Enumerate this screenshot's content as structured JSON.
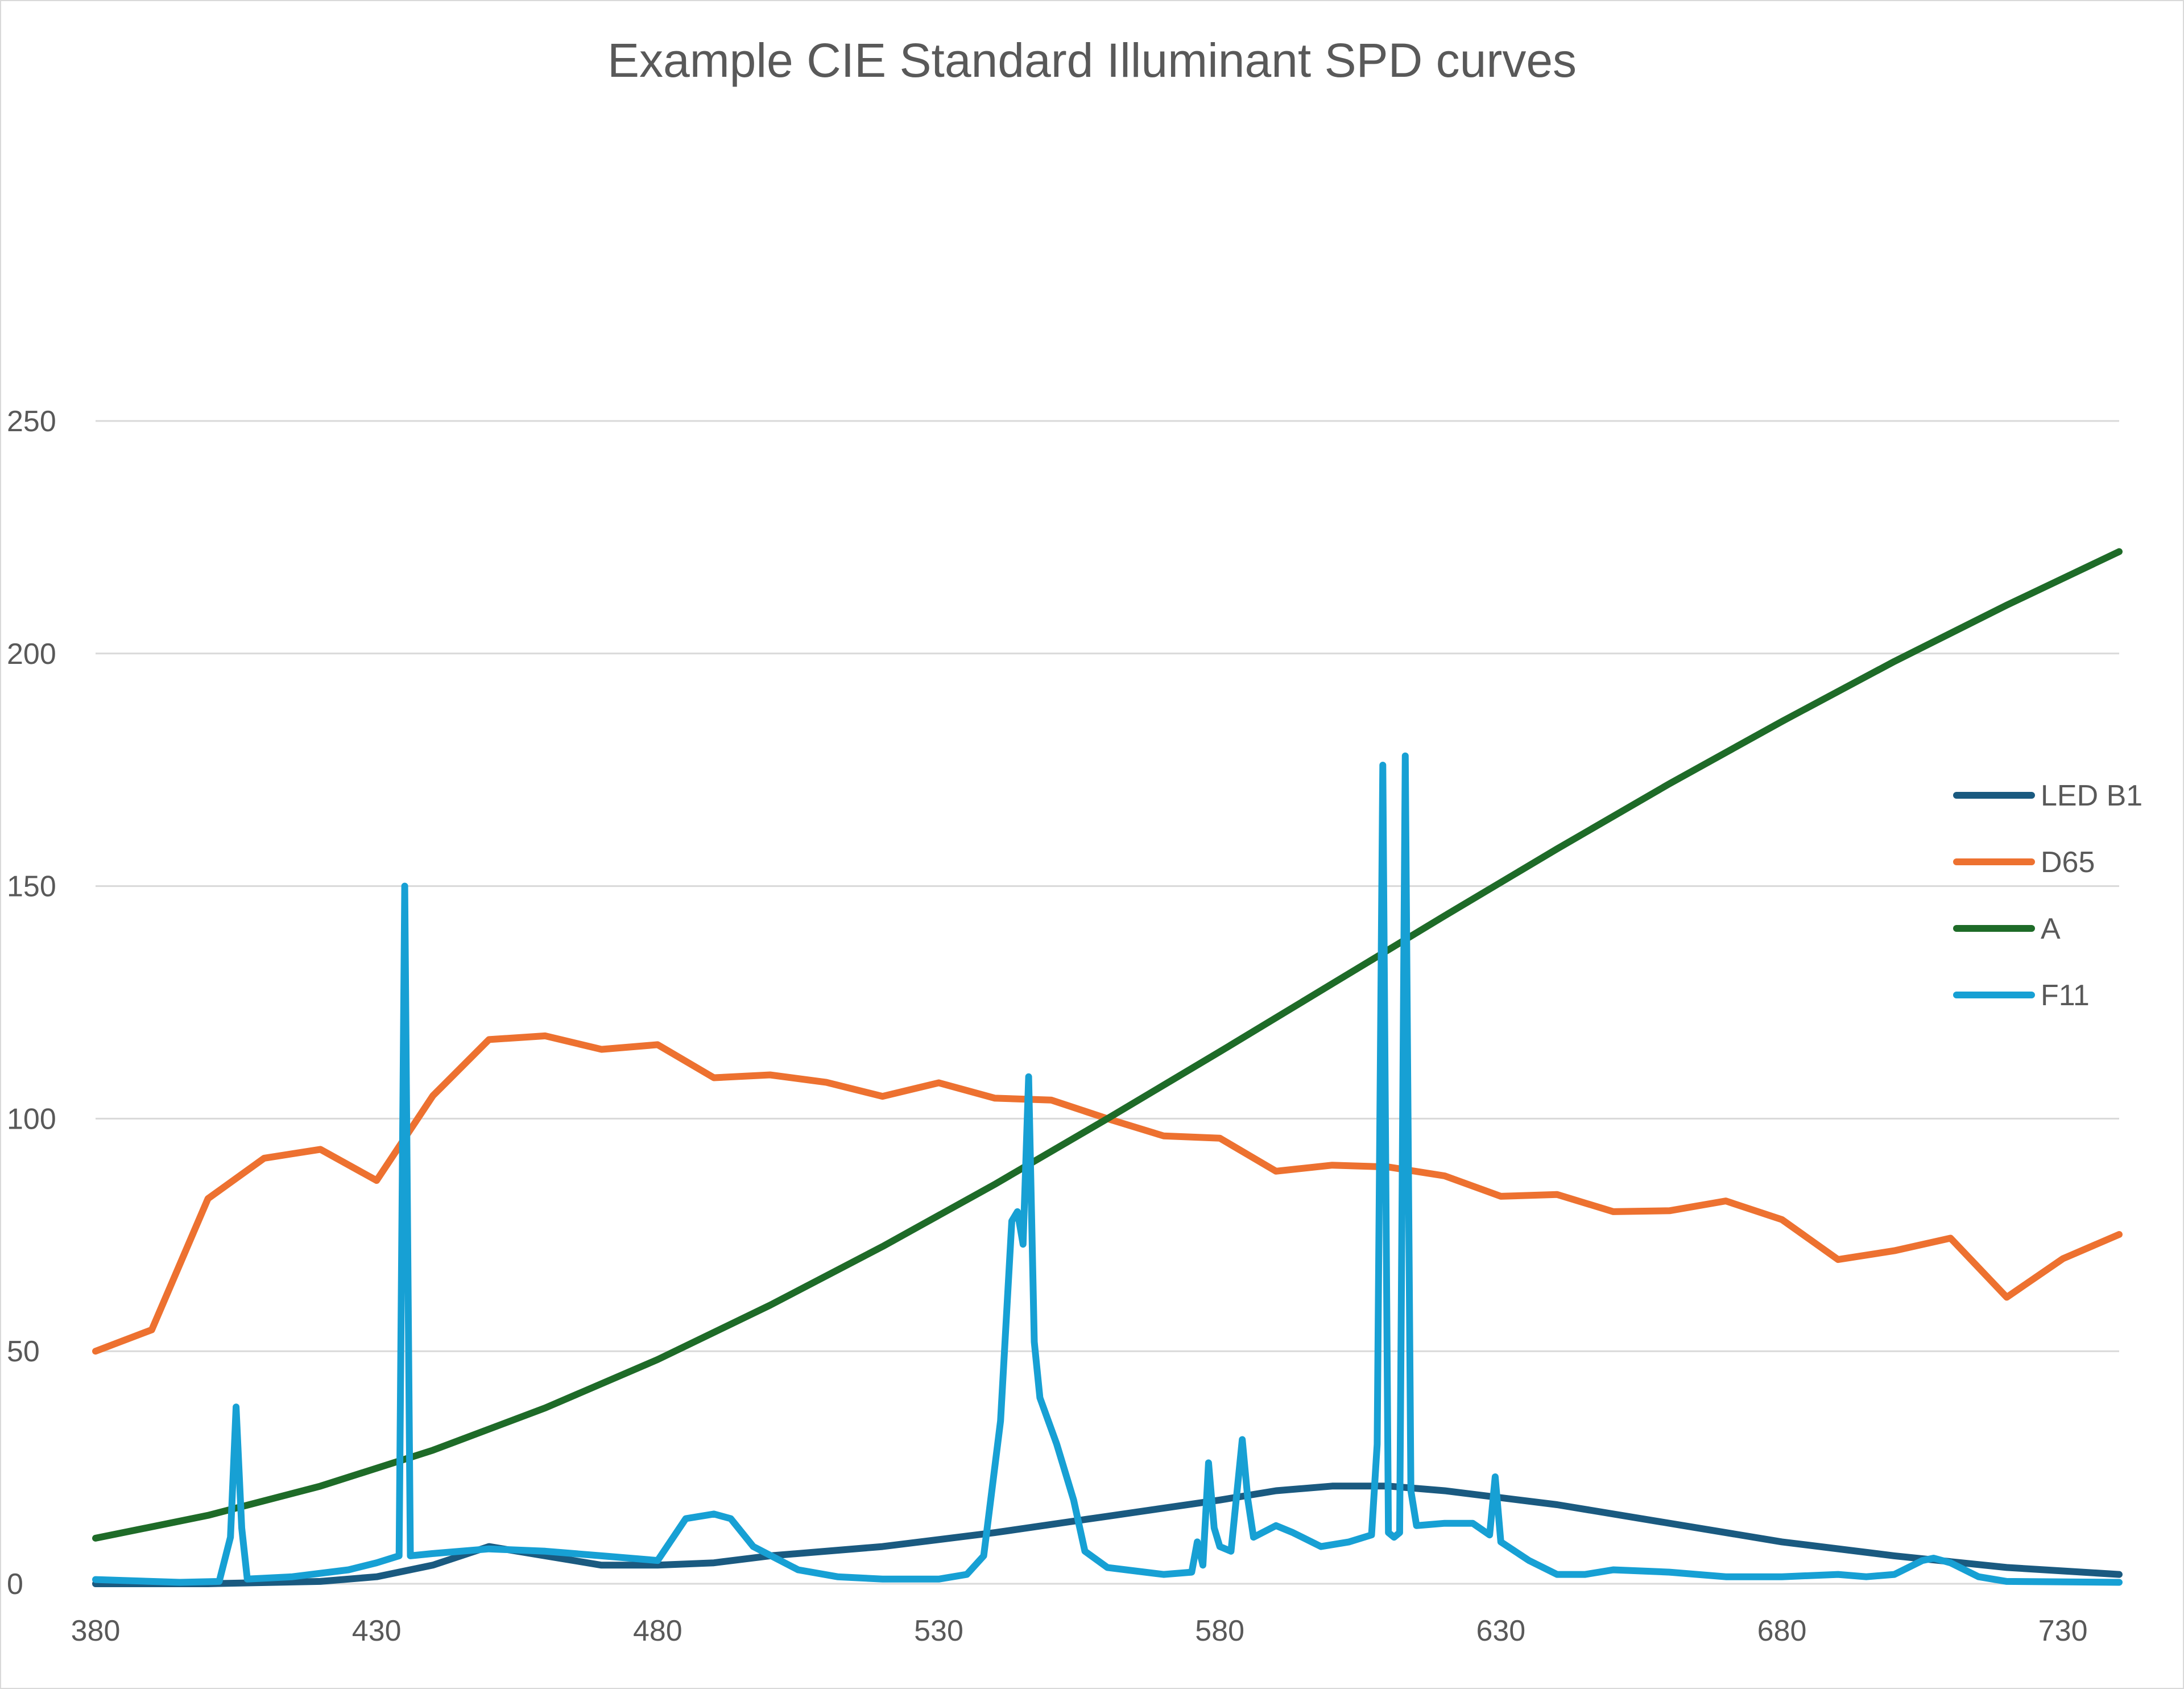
{
  "chart_data": {
    "type": "line",
    "title": "Example CIE Standard Illuminant SPD curves",
    "xlabel": "",
    "ylabel": "",
    "xlim": [
      380,
      740
    ],
    "ylim": [
      0,
      250
    ],
    "x_ticks": [
      "380",
      "430",
      "480",
      "530",
      "580",
      "630",
      "680",
      "730"
    ],
    "y_ticks": [
      "0",
      "50",
      "100",
      "150",
      "200",
      "250"
    ],
    "grid": "horizontal",
    "legend_position": "right",
    "series": [
      {
        "name": "LED B1",
        "color": "#1a5a80",
        "points": [
          [
            380,
            0
          ],
          [
            400,
            0
          ],
          [
            420,
            0.5
          ],
          [
            430,
            1.5
          ],
          [
            440,
            4
          ],
          [
            450,
            8
          ],
          [
            460,
            6
          ],
          [
            470,
            4
          ],
          [
            480,
            4
          ],
          [
            490,
            4.5
          ],
          [
            500,
            6
          ],
          [
            520,
            8
          ],
          [
            540,
            11
          ],
          [
            560,
            14.5
          ],
          [
            580,
            18
          ],
          [
            590,
            20
          ],
          [
            600,
            21
          ],
          [
            610,
            21
          ],
          [
            620,
            20
          ],
          [
            640,
            17
          ],
          [
            660,
            13
          ],
          [
            680,
            9
          ],
          [
            700,
            6
          ],
          [
            720,
            3.5
          ],
          [
            740,
            2
          ]
        ]
      },
      {
        "name": "D65",
        "color": "#ed7130",
        "points": [
          [
            380,
            50
          ],
          [
            390,
            54.6
          ],
          [
            400,
            82.8
          ],
          [
            410,
            91.5
          ],
          [
            420,
            93.4
          ],
          [
            430,
            86.7
          ],
          [
            440,
            104.9
          ],
          [
            450,
            117
          ],
          [
            460,
            117.8
          ],
          [
            470,
            114.9
          ],
          [
            480,
            115.9
          ],
          [
            490,
            108.8
          ],
          [
            500,
            109.4
          ],
          [
            510,
            107.8
          ],
          [
            520,
            104.8
          ],
          [
            530,
            107.7
          ],
          [
            540,
            104.4
          ],
          [
            550,
            104
          ],
          [
            560,
            100
          ],
          [
            570,
            96.3
          ],
          [
            580,
            95.8
          ],
          [
            590,
            88.7
          ],
          [
            600,
            90
          ],
          [
            610,
            89.6
          ],
          [
            620,
            87.7
          ],
          [
            630,
            83.3
          ],
          [
            640,
            83.7
          ],
          [
            650,
            80
          ],
          [
            660,
            80.2
          ],
          [
            670,
            82.3
          ],
          [
            680,
            78.3
          ],
          [
            690,
            69.7
          ],
          [
            700,
            71.6
          ],
          [
            710,
            74.3
          ],
          [
            720,
            61.6
          ],
          [
            730,
            69.9
          ],
          [
            740,
            75.1
          ]
        ]
      },
      {
        "name": "A",
        "color": "#1e6b28",
        "points": [
          [
            380,
            9.8
          ],
          [
            400,
            14.7
          ],
          [
            420,
            20.99
          ],
          [
            440,
            28.7
          ],
          [
            460,
            37.8
          ],
          [
            480,
            48.2
          ],
          [
            500,
            59.9
          ],
          [
            520,
            72.5
          ],
          [
            540,
            85.9
          ],
          [
            560,
            100
          ],
          [
            580,
            114.4
          ],
          [
            600,
            129
          ],
          [
            620,
            143.6
          ],
          [
            640,
            158
          ],
          [
            660,
            172
          ],
          [
            680,
            185.4
          ],
          [
            700,
            198.3
          ],
          [
            720,
            210.4
          ],
          [
            740,
            221.9
          ]
        ]
      },
      {
        "name": "F11",
        "color": "#17a0d4",
        "points": [
          [
            380,
            0.9
          ],
          [
            395,
            0.3
          ],
          [
            402,
            0.5
          ],
          [
            404,
            10
          ],
          [
            405,
            38
          ],
          [
            406,
            12
          ],
          [
            407,
            1
          ],
          [
            415,
            1.5
          ],
          [
            425,
            3
          ],
          [
            430,
            4.5
          ],
          [
            434,
            6
          ],
          [
            435,
            150
          ],
          [
            436,
            6
          ],
          [
            440,
            6.5
          ],
          [
            450,
            7.5
          ],
          [
            460,
            7
          ],
          [
            470,
            6
          ],
          [
            480,
            5
          ],
          [
            485,
            14
          ],
          [
            490,
            15
          ],
          [
            493,
            14
          ],
          [
            497,
            8
          ],
          [
            505,
            3
          ],
          [
            512,
            1.5
          ],
          [
            520,
            1
          ],
          [
            530,
            1
          ],
          [
            535,
            2
          ],
          [
            538,
            6
          ],
          [
            541,
            35
          ],
          [
            543,
            78
          ],
          [
            544,
            80
          ],
          [
            545,
            73
          ],
          [
            546,
            109
          ],
          [
            547,
            52
          ],
          [
            548,
            40
          ],
          [
            551,
            30
          ],
          [
            554,
            18
          ],
          [
            556,
            7
          ],
          [
            560,
            3.5
          ],
          [
            570,
            2
          ],
          [
            575,
            2.5
          ],
          [
            576,
            9
          ],
          [
            577,
            4
          ],
          [
            578,
            26
          ],
          [
            579,
            12
          ],
          [
            580,
            8
          ],
          [
            582,
            7
          ],
          [
            584,
            31
          ],
          [
            585,
            18
          ],
          [
            586,
            10
          ],
          [
            590,
            12.5
          ],
          [
            593,
            11
          ],
          [
            598,
            8
          ],
          [
            603,
            9
          ],
          [
            607,
            10.5
          ],
          [
            608,
            30
          ],
          [
            609,
            176
          ],
          [
            610,
            11
          ],
          [
            611,
            10
          ],
          [
            612,
            11
          ],
          [
            613,
            178
          ],
          [
            614,
            20
          ],
          [
            615,
            12.5
          ],
          [
            620,
            13
          ],
          [
            625,
            13
          ],
          [
            628,
            10.5
          ],
          [
            629,
            23
          ],
          [
            630,
            9
          ],
          [
            635,
            5
          ],
          [
            640,
            2
          ],
          [
            645,
            2
          ],
          [
            650,
            3
          ],
          [
            660,
            2.5
          ],
          [
            670,
            1.5
          ],
          [
            680,
            1.5
          ],
          [
            690,
            2
          ],
          [
            695,
            1.5
          ],
          [
            700,
            2
          ],
          [
            705,
            5
          ],
          [
            707,
            5.5
          ],
          [
            710,
            4.5
          ],
          [
            715,
            1.5
          ],
          [
            720,
            0.5
          ],
          [
            740,
            0.3
          ]
        ]
      }
    ]
  }
}
